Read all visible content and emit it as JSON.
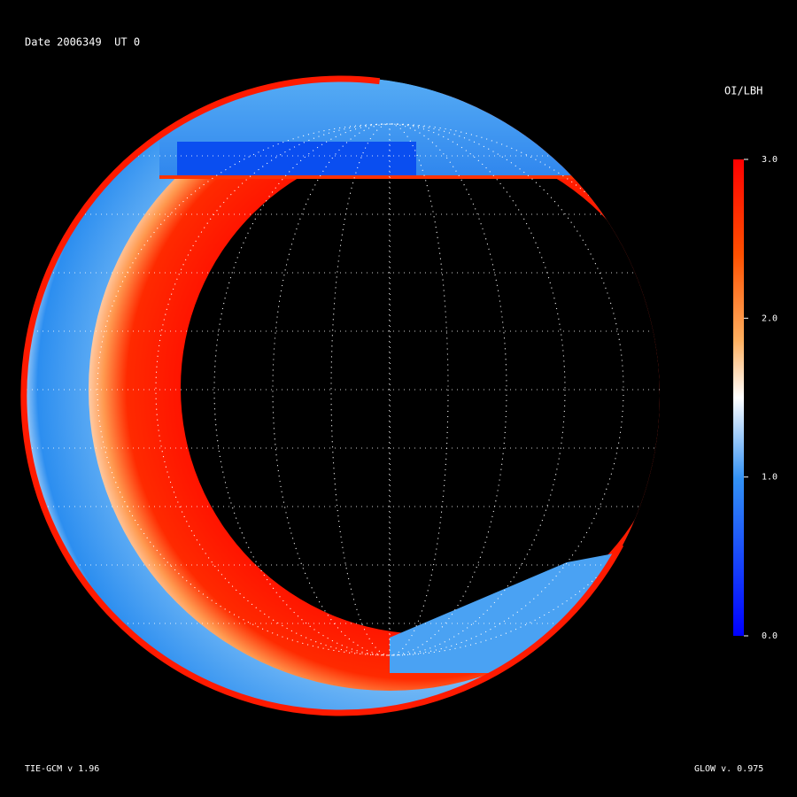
{
  "header": {
    "title": "Date 2006349  UT 0",
    "model": "TIE-GCM v 1.96",
    "glow": "GLOW v. 0.975"
  },
  "colorbar": {
    "title": "OI/LBH",
    "lim": [
      0,
      3
    ],
    "ticks": [
      {
        "value": 3,
        "label": "3.0"
      },
      {
        "value": 2,
        "label": "2.0"
      },
      {
        "value": 1,
        "label": "1.0"
      },
      {
        "value": 0,
        "label": "0.0"
      }
    ]
  }
}
